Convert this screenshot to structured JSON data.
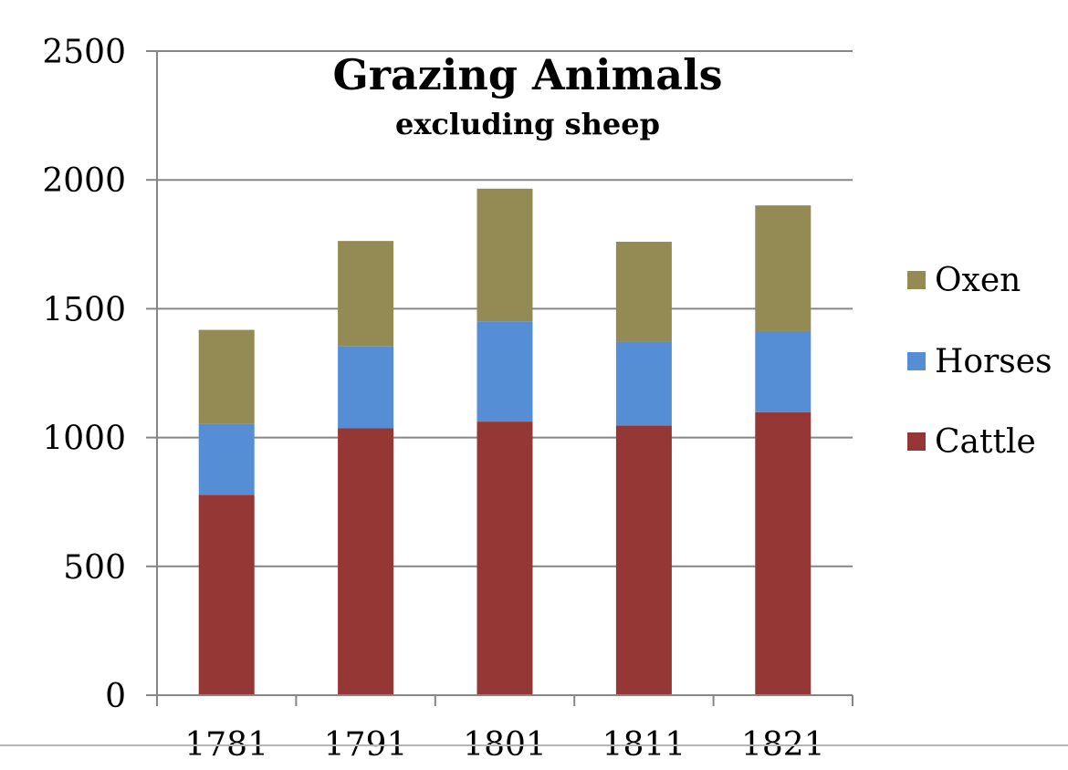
{
  "chart_data": {
    "type": "bar",
    "stacked": true,
    "title": "Grazing Animals",
    "subtitle": "excluding sheep",
    "categories": [
      "1781",
      "1791",
      "1801",
      "1811",
      "1821"
    ],
    "series": [
      {
        "name": "Cattle",
        "color": "#953735",
        "values": [
          778,
          1037,
          1062,
          1047,
          1098
        ]
      },
      {
        "name": "Horses",
        "color": "#558ed5",
        "values": [
          275,
          318,
          389,
          325,
          315
        ]
      },
      {
        "name": "Oxen",
        "color": "#948a54",
        "values": [
          365,
          408,
          515,
          388,
          488
        ]
      }
    ],
    "legend_order": [
      "Oxen",
      "Horses",
      "Cattle"
    ],
    "legend_position": "right",
    "ylim": [
      0,
      2500
    ],
    "yticks": [
      "0",
      "500",
      "1000",
      "1500",
      "2000",
      "2500"
    ],
    "grid": true,
    "xlabel": "",
    "ylabel": ""
  }
}
